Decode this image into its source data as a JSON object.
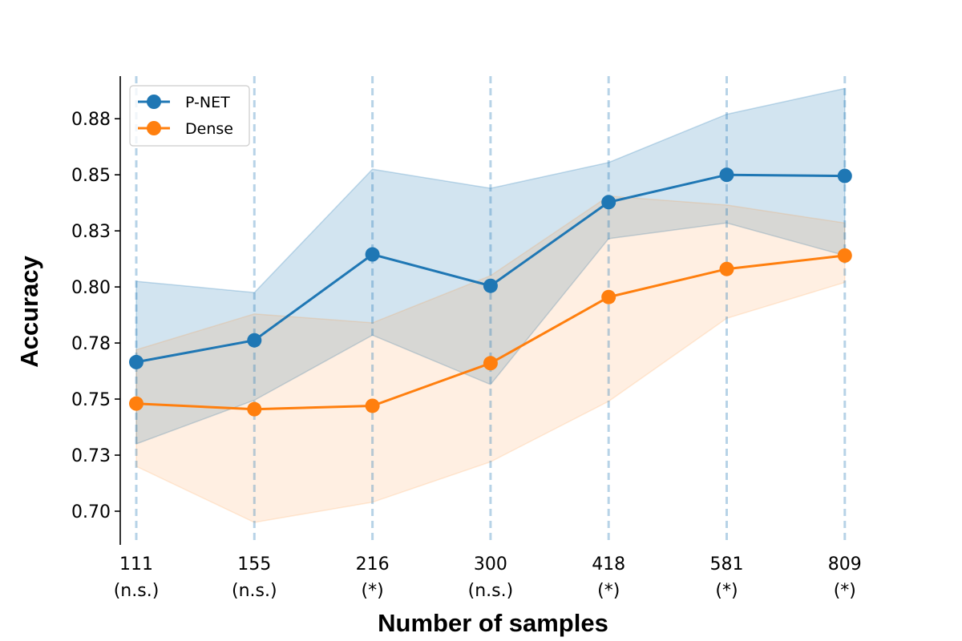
{
  "chart_data": {
    "type": "line",
    "title": "",
    "xlabel": "Number of samples",
    "ylabel": "Accuracy",
    "x_categories": [
      {
        "value": "111",
        "significance": "(n.s.)"
      },
      {
        "value": "155",
        "significance": "(n.s.)"
      },
      {
        "value": "216",
        "significance": "(*)"
      },
      {
        "value": "300",
        "significance": "(n.s.)"
      },
      {
        "value": "418",
        "significance": "(*)"
      },
      {
        "value": "581",
        "significance": "(*)"
      },
      {
        "value": "809",
        "significance": "(*)"
      }
    ],
    "yticks": [
      "0.70",
      "0.73",
      "0.75",
      "0.78",
      "0.80",
      "0.83",
      "0.85",
      "0.88"
    ],
    "ytick_values": [
      0.7,
      0.725,
      0.75,
      0.775,
      0.8,
      0.825,
      0.85,
      0.875
    ],
    "ylim": [
      0.685,
      0.894
    ],
    "grid": false,
    "vertical_reference_lines": true,
    "legend_placement": "top-left",
    "series": [
      {
        "name": "P-NET",
        "color": "#1f77b4",
        "values": [
          0.7665,
          0.7762,
          0.8145,
          0.8005,
          0.8378,
          0.85,
          0.8495
        ],
        "upper": [
          0.8025,
          0.7975,
          0.8525,
          0.844,
          0.8555,
          0.877,
          0.8885
        ],
        "lower": [
          0.73,
          0.7495,
          0.7785,
          0.7565,
          0.8215,
          0.8285,
          0.814
        ]
      },
      {
        "name": "Dense",
        "color": "#ff7f0e",
        "values": [
          0.748,
          0.7455,
          0.747,
          0.766,
          0.7955,
          0.808,
          0.814
        ],
        "upper": [
          0.772,
          0.788,
          0.784,
          0.805,
          0.8405,
          0.8365,
          0.8285
        ],
        "lower": [
          0.72,
          0.695,
          0.704,
          0.722,
          0.749,
          0.786,
          0.802
        ]
      }
    ]
  }
}
